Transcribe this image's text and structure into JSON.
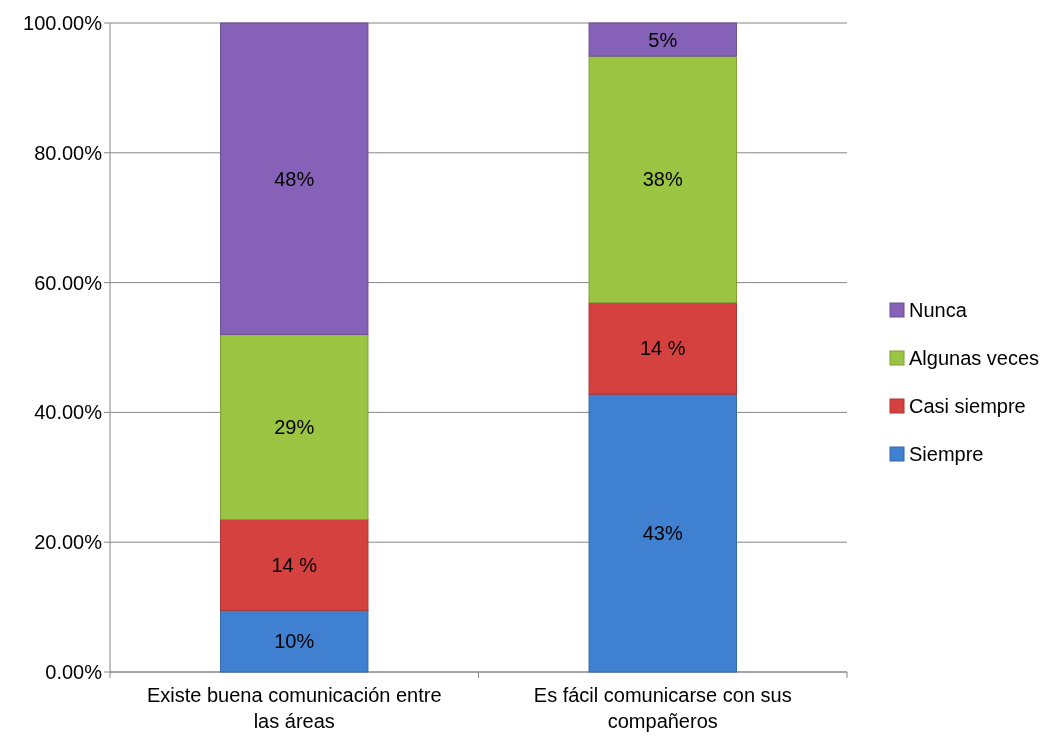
{
  "chart_data": {
    "type": "bar",
    "stacked": true,
    "categories": [
      "Existe buena comunicación entre las áreas",
      "Es fácil comunicarse con sus compañeros"
    ],
    "series": [
      {
        "name": "Siempre",
        "color": "#3f80d0",
        "values": [
          9.5,
          42.8
        ],
        "value_labels": [
          "10%",
          "43%"
        ]
      },
      {
        "name": "Casi siempre",
        "color": "#d4413e",
        "values": [
          14.0,
          14.1
        ],
        "value_labels": [
          "14 %",
          "14 %"
        ]
      },
      {
        "name": "Algunas veces",
        "color": "#9cc443",
        "values": [
          28.5,
          38.0
        ],
        "value_labels": [
          "29%",
          "38%"
        ]
      },
      {
        "name": "Nunca",
        "color": "#8661b8",
        "values": [
          48.0,
          5.1
        ],
        "value_labels": [
          "48%",
          "5%"
        ]
      }
    ],
    "ylim": [
      0,
      100
    ],
    "yticks": [
      {
        "value": 0,
        "label": "0.00%"
      },
      {
        "value": 20,
        "label": "20.00%"
      },
      {
        "value": 40,
        "label": "40.00%"
      },
      {
        "value": 60,
        "label": "60.00%"
      },
      {
        "value": 80,
        "label": "80.00%"
      },
      {
        "value": 100,
        "label": "100.00%"
      }
    ],
    "grid": "y",
    "legend": "right"
  }
}
